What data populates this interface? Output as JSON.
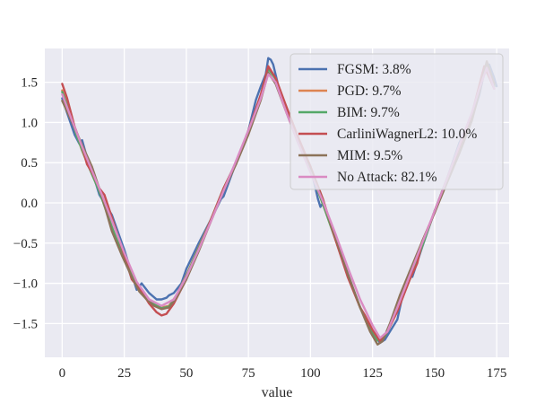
{
  "chart_data": {
    "type": "line",
    "title": "",
    "xlabel": "value",
    "ylabel": "",
    "xlim": [
      -7,
      180
    ],
    "ylim": [
      -1.92,
      1.92
    ],
    "grid": true,
    "legend_position": "top-right",
    "xticks": [
      0,
      25,
      50,
      75,
      100,
      125,
      150,
      175
    ],
    "xtick_labels": [
      "0",
      "25",
      "50",
      "75",
      "100",
      "125",
      "150",
      "175"
    ],
    "yticks": [
      1.5,
      1.0,
      0.5,
      0.0,
      -0.5,
      -1.0,
      -1.5
    ],
    "ytick_labels": [
      "1.5",
      "1.0",
      "0.5",
      "0.0",
      "−0.5",
      "−1.0",
      "−1.5"
    ],
    "series": [
      {
        "name": "FGSM: 3.8%",
        "color": "#4c72b0",
        "x": [
          0,
          2,
          5,
          7,
          8,
          11,
          13,
          15,
          20,
          25,
          30,
          32,
          35,
          38,
          40,
          42,
          43,
          45,
          48,
          50,
          55,
          60,
          64,
          65,
          70,
          75,
          78,
          80,
          82,
          83,
          84,
          85,
          87,
          90,
          95,
          100,
          103,
          104,
          105,
          110,
          115,
          120,
          125,
          128,
          130,
          135,
          138,
          140,
          141,
          145,
          150,
          155,
          160,
          165,
          168,
          170,
          172,
          174,
          175
        ],
        "y": [
          1.3,
          1.12,
          0.85,
          0.73,
          0.78,
          0.45,
          0.3,
          0.1,
          -0.15,
          -0.58,
          -1.08,
          -1.0,
          -1.12,
          -1.2,
          -1.2,
          -1.18,
          -1.15,
          -1.12,
          -1.0,
          -0.82,
          -0.5,
          -0.2,
          0.05,
          0.08,
          0.5,
          0.9,
          1.28,
          1.45,
          1.6,
          1.8,
          1.78,
          1.72,
          1.46,
          1.18,
          0.78,
          0.45,
          0.05,
          -0.05,
          0.0,
          -0.43,
          -0.88,
          -1.3,
          -1.6,
          -1.74,
          -1.7,
          -1.45,
          -1.02,
          -0.85,
          -0.92,
          -0.55,
          -0.1,
          0.3,
          0.75,
          1.05,
          1.35,
          1.62,
          1.72,
          1.55,
          1.45
        ]
      },
      {
        "name": "PGD: 9.7%",
        "color": "#dd8452",
        "x": [
          0,
          3,
          6,
          8,
          10,
          15,
          20,
          25,
          30,
          33,
          37,
          40,
          43,
          46,
          50,
          55,
          60,
          65,
          70,
          75,
          80,
          83,
          86,
          90,
          95,
          100,
          103,
          106,
          110,
          115,
          120,
          124,
          127,
          130,
          134,
          138,
          142,
          146,
          150,
          155,
          160,
          165,
          168,
          171,
          174
        ],
        "y": [
          1.4,
          1.13,
          0.83,
          0.65,
          0.5,
          0.15,
          -0.3,
          -0.7,
          -1.02,
          -1.15,
          -1.25,
          -1.3,
          -1.28,
          -1.15,
          -0.9,
          -0.55,
          -0.2,
          0.18,
          0.5,
          0.88,
          1.3,
          1.68,
          1.55,
          1.2,
          0.8,
          0.45,
          0.15,
          -0.1,
          -0.45,
          -0.9,
          -1.3,
          -1.55,
          -1.7,
          -1.65,
          -1.4,
          -1.1,
          -0.8,
          -0.45,
          -0.1,
          0.3,
          0.7,
          1.1,
          1.4,
          1.72,
          1.45
        ]
      },
      {
        "name": "BIM: 9.7%",
        "color": "#55a868",
        "x": [
          0,
          3,
          6,
          8,
          10,
          15,
          20,
          25,
          30,
          33,
          37,
          40,
          43,
          46,
          50,
          55,
          60,
          65,
          70,
          75,
          80,
          83,
          86,
          90,
          95,
          100,
          103,
          106,
          110,
          115,
          120,
          124,
          127,
          130,
          134,
          138,
          142,
          146,
          150,
          155,
          160,
          165,
          168,
          171,
          174
        ],
        "y": [
          1.38,
          1.12,
          0.82,
          0.66,
          0.5,
          0.14,
          -0.3,
          -0.7,
          -1.04,
          -1.16,
          -1.26,
          -1.31,
          -1.29,
          -1.16,
          -0.91,
          -0.56,
          -0.2,
          0.18,
          0.5,
          0.88,
          1.3,
          1.67,
          1.54,
          1.2,
          0.8,
          0.45,
          0.15,
          -0.1,
          -0.45,
          -0.9,
          -1.3,
          -1.56,
          -1.71,
          -1.66,
          -1.4,
          -1.1,
          -0.8,
          -0.45,
          -0.1,
          0.3,
          0.7,
          1.1,
          1.4,
          1.72,
          1.45
        ]
      },
      {
        "name": "CarliniWagnerL2: 10.0%",
        "color": "#c44e52",
        "x": [
          0,
          2,
          5,
          8,
          10,
          12,
          15,
          17,
          20,
          25,
          28,
          32,
          35,
          38,
          40,
          42,
          45,
          50,
          55,
          60,
          65,
          70,
          75,
          80,
          83,
          86,
          90,
          95,
          100,
          105,
          110,
          115,
          120,
          122,
          125,
          128,
          131,
          135,
          140,
          143,
          145,
          150,
          155,
          160,
          165,
          170,
          174
        ],
        "y": [
          1.48,
          1.3,
          0.95,
          0.7,
          0.48,
          0.38,
          0.18,
          0.1,
          -0.18,
          -0.65,
          -0.95,
          -1.1,
          -1.25,
          -1.36,
          -1.4,
          -1.38,
          -1.25,
          -0.95,
          -0.58,
          -0.2,
          0.18,
          0.5,
          0.9,
          1.35,
          1.7,
          1.55,
          1.22,
          0.82,
          0.45,
          0.05,
          -0.45,
          -0.92,
          -1.3,
          -1.4,
          -1.58,
          -1.72,
          -1.6,
          -1.35,
          -0.95,
          -0.75,
          -0.48,
          -0.12,
          0.28,
          0.7,
          1.1,
          1.7,
          1.42
        ]
      },
      {
        "name": "MIM: 9.5%",
        "color": "#8c7359",
        "x": [
          0,
          4,
          8,
          12,
          16,
          20,
          24,
          28,
          31,
          34,
          37,
          40,
          43,
          46,
          50,
          55,
          60,
          65,
          70,
          75,
          80,
          83,
          86,
          90,
          95,
          100,
          105,
          110,
          115,
          120,
          124,
          127,
          129,
          132,
          136,
          140,
          145,
          150,
          155,
          160,
          165,
          168,
          171,
          174
        ],
        "y": [
          1.27,
          1.0,
          0.72,
          0.45,
          0.08,
          -0.35,
          -0.65,
          -0.92,
          -1.1,
          -1.2,
          -1.28,
          -1.32,
          -1.3,
          -1.18,
          -0.95,
          -0.6,
          -0.22,
          0.15,
          0.48,
          0.85,
          1.28,
          1.62,
          1.48,
          1.15,
          0.75,
          0.42,
          0.02,
          -0.42,
          -0.88,
          -1.3,
          -1.6,
          -1.76,
          -1.72,
          -1.5,
          -1.15,
          -0.85,
          -0.48,
          -0.12,
          0.25,
          0.62,
          1.02,
          1.38,
          1.76,
          1.48
        ]
      },
      {
        "name": "No Attack: 82.1%",
        "color": "#da8bc3",
        "x": [
          0,
          4,
          8,
          12,
          16,
          20,
          25,
          30,
          35,
          40,
          45,
          50,
          55,
          60,
          65,
          70,
          75,
          80,
          83,
          86,
          90,
          95,
          100,
          105,
          110,
          115,
          120,
          125,
          128,
          131,
          135,
          140,
          145,
          150,
          155,
          160,
          165,
          168,
          171,
          174
        ],
        "y": [
          1.35,
          1.02,
          0.7,
          0.4,
          0.1,
          -0.22,
          -0.62,
          -0.98,
          -1.2,
          -1.28,
          -1.2,
          -0.92,
          -0.58,
          -0.22,
          0.15,
          0.52,
          0.9,
          1.3,
          1.6,
          1.5,
          1.15,
          0.75,
          0.38,
          0.02,
          -0.38,
          -0.8,
          -1.2,
          -1.52,
          -1.68,
          -1.6,
          -1.3,
          -0.9,
          -0.5,
          -0.1,
          0.3,
          0.72,
          1.12,
          1.42,
          1.68,
          1.42
        ]
      }
    ]
  }
}
